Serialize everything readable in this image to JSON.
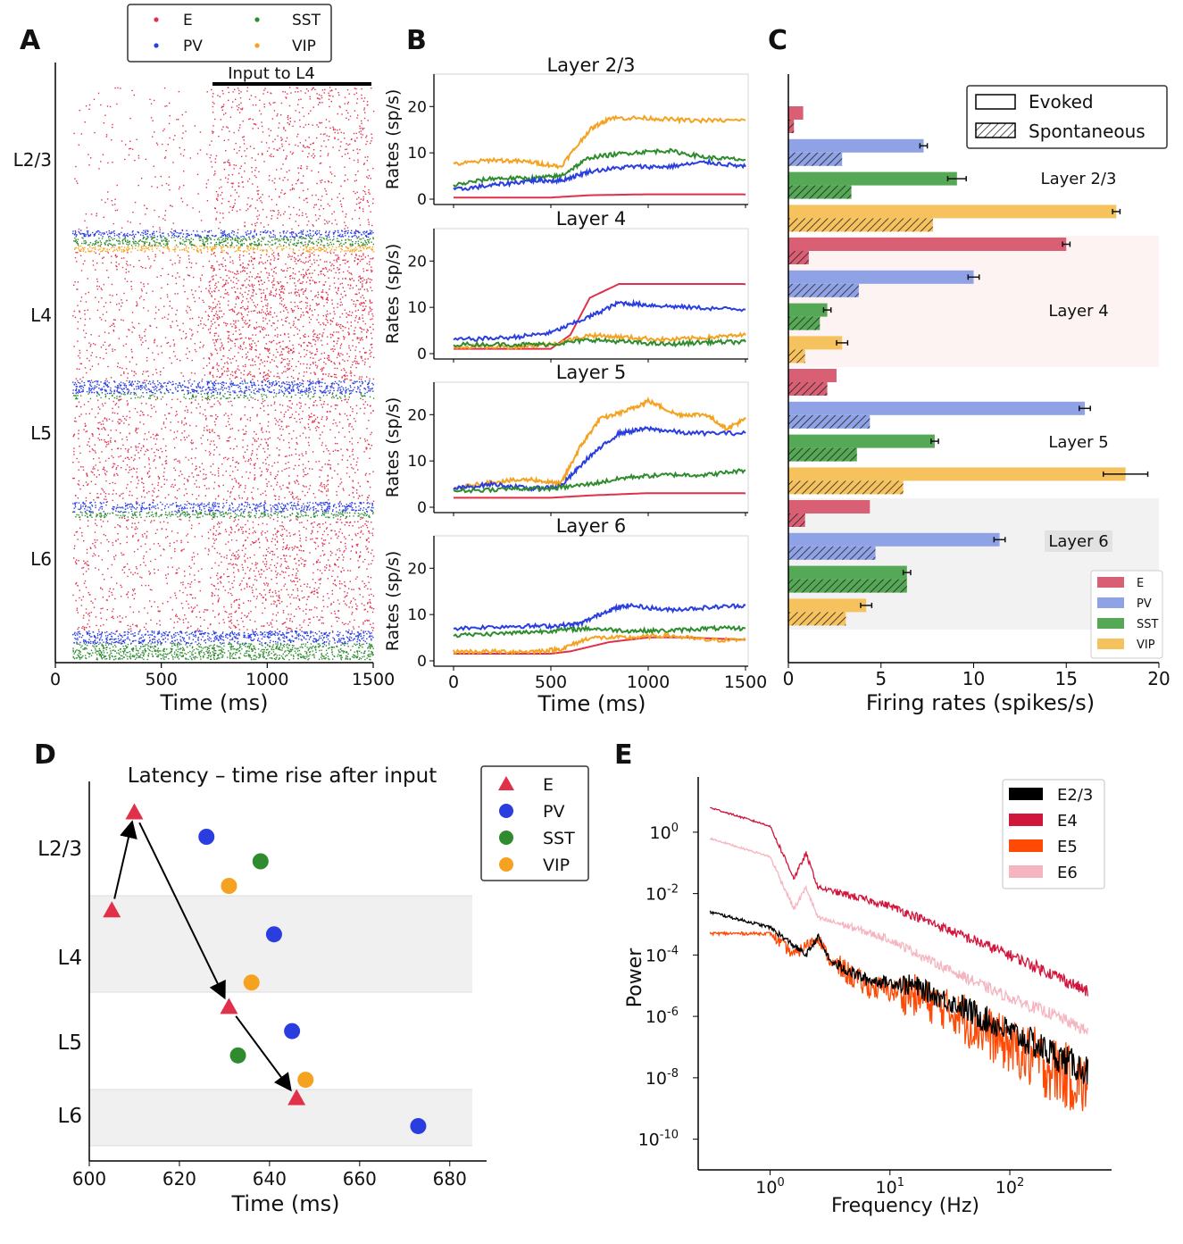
{
  "colors": {
    "E": "#e0304a",
    "PV": "#2a3ee0",
    "SST": "#2e8b2e",
    "VIP": "#f4a21f",
    "E_bar": "#d95f74",
    "PV_bar": "#8fa2e6",
    "SST_bar": "#55a855",
    "VIP_bar": "#f6c25e",
    "E4": "#d0163c",
    "E5": "#ff4a06",
    "E6": "#f5b5c0",
    "E23": "#000000"
  },
  "chart_data": [
    {
      "id": "A",
      "panel_letter": "A",
      "type": "scatter",
      "xlabel": "Time (ms)",
      "xlim": [
        0,
        1500
      ],
      "xticks": [
        0,
        500,
        1000,
        1500
      ],
      "input_label": "Input to L4",
      "input_range": [
        750,
        1500
      ],
      "layer_labels": [
        "L2/3",
        "L4",
        "L5",
        "L6"
      ],
      "legend": [
        {
          "name": "E",
          "key": "E"
        },
        {
          "name": "PV",
          "key": "PV"
        },
        {
          "name": "SST",
          "key": "SST"
        },
        {
          "name": "VIP",
          "key": "VIP"
        }
      ],
      "bands": [
        {
          "layer": "L2/3",
          "y": [
            0,
            0.25
          ],
          "rate_before": 0.13,
          "rate_after": 0.45,
          "type": "E"
        },
        {
          "layer": "L2/3",
          "y": [
            0.25,
            0.262
          ],
          "rate_before": 1,
          "rate_after": 1,
          "type": "PV"
        },
        {
          "layer": "L2/3",
          "y": [
            0.262,
            0.277
          ],
          "rate_before": 1,
          "rate_after": 1,
          "type": "SST"
        },
        {
          "layer": "L2/3",
          "y": [
            0.277,
            0.288
          ],
          "rate_before": 1,
          "rate_after": 1,
          "type": "VIP"
        },
        {
          "layer": "L4",
          "y": [
            0.288,
            0.513
          ],
          "rate_before": 0.35,
          "rate_after": 1,
          "type": "E",
          "onset": 720
        },
        {
          "layer": "L4",
          "y": [
            0.513,
            0.535
          ],
          "rate_before": 1,
          "rate_after": 1,
          "type": "PV"
        },
        {
          "layer": "L4",
          "y": [
            0.535,
            0.545
          ],
          "rate_before": 0.5,
          "rate_after": 0.5,
          "type": "SST"
        },
        {
          "layer": "L5",
          "y": [
            0.545,
            0.725
          ],
          "rate_before": 0.55,
          "rate_after": 0.55,
          "type": "E"
        },
        {
          "layer": "L5",
          "y": [
            0.725,
            0.742
          ],
          "rate_before": 0.8,
          "rate_after": 1,
          "type": "PV"
        },
        {
          "layer": "L5",
          "y": [
            0.742,
            0.752
          ],
          "rate_before": 1,
          "rate_after": 1,
          "type": "SST"
        },
        {
          "layer": "L6",
          "y": [
            0.752,
            0.95
          ],
          "rate_before": 0.4,
          "rate_after": 0.7,
          "type": "E"
        },
        {
          "layer": "L6",
          "y": [
            0.95,
            0.972
          ],
          "rate_before": 1,
          "rate_after": 1,
          "type": "PV"
        },
        {
          "layer": "L6",
          "y": [
            0.972,
            1.0
          ],
          "rate_before": 1,
          "rate_after": 1,
          "type": "SST"
        }
      ]
    },
    {
      "id": "B",
      "panel_letter": "B",
      "type": "line",
      "xlabel": "Time (ms)",
      "ylabel": "Rates (sp/s)",
      "xticks": [
        0,
        500,
        1000,
        1500
      ],
      "xlim": [
        0,
        1500
      ],
      "subplots": [
        {
          "title": "Layer 2/3",
          "ylim": [
            0,
            27
          ],
          "yticks": [
            0,
            10,
            20
          ],
          "series": [
            {
              "name": "VIP",
              "x": [
                0,
                200,
                400,
                550,
                700,
                800,
                1000,
                1200,
                1500
              ],
              "y": [
                7.5,
                8.5,
                8,
                7,
                15,
                17.5,
                17.5,
                17,
                17
              ]
            },
            {
              "name": "SST",
              "x": [
                0,
                200,
                400,
                550,
                700,
                900,
                1100,
                1300,
                1500
              ],
              "y": [
                3,
                4.5,
                4.5,
                5,
                9,
                10,
                10.5,
                9,
                8.5
              ]
            },
            {
              "name": "PV",
              "x": [
                0,
                200,
                400,
                550,
                700,
                900,
                1100,
                1300,
                1500
              ],
              "y": [
                2,
                3,
                4,
                4,
                6,
                7,
                7,
                8,
                7
              ]
            },
            {
              "name": "E",
              "x": [
                0,
                500,
                700,
                1000,
                1500
              ],
              "y": [
                0.3,
                0.3,
                0.8,
                1,
                1
              ]
            }
          ]
        },
        {
          "title": "Layer 4",
          "ylim": [
            0,
            27
          ],
          "yticks": [
            0,
            10,
            20
          ],
          "series": [
            {
              "name": "E",
              "x": [
                0,
                500,
                600,
                700,
                850,
                1000,
                1500
              ],
              "y": [
                1,
                1,
                4,
                12,
                15,
                15,
                15
              ]
            },
            {
              "name": "PV",
              "x": [
                0,
                300,
                500,
                700,
                850,
                1000,
                1200,
                1500
              ],
              "y": [
                3,
                3.5,
                4.5,
                8,
                11,
                10.5,
                10,
                9.5
              ]
            },
            {
              "name": "VIP",
              "x": [
                0,
                300,
                500,
                700,
                900,
                1100,
                1300,
                1500
              ],
              "y": [
                1.5,
                1.5,
                2,
                4,
                3.5,
                3,
                3.5,
                4
              ]
            },
            {
              "name": "SST",
              "x": [
                0,
                300,
                500,
                700,
                900,
                1100,
                1300,
                1500
              ],
              "y": [
                2,
                2,
                2,
                3,
                2.5,
                2,
                2.5,
                2.5
              ]
            }
          ]
        },
        {
          "title": "Layer 5",
          "ylim": [
            0,
            27
          ],
          "yticks": [
            0,
            10,
            20
          ],
          "series": [
            {
              "name": "VIP",
              "x": [
                0,
                200,
                400,
                550,
                650,
                750,
                900,
                1000,
                1150,
                1300,
                1400,
                1500
              ],
              "y": [
                4,
                5.5,
                6,
                5,
                13,
                19,
                21,
                23,
                20,
                20,
                17,
                19
              ]
            },
            {
              "name": "PV",
              "x": [
                0,
                200,
                400,
                550,
                700,
                850,
                1000,
                1200,
                1500
              ],
              "y": [
                4,
                5,
                4,
                4.5,
                11,
                16,
                17,
                16,
                16
              ]
            },
            {
              "name": "SST",
              "x": [
                0,
                300,
                500,
                700,
                900,
                1100,
                1300,
                1500
              ],
              "y": [
                3.5,
                4,
                4,
                5,
                6.5,
                7,
                7,
                8
              ]
            },
            {
              "name": "E",
              "x": [
                0,
                500,
                700,
                1000,
                1500
              ],
              "y": [
                2,
                2,
                2.5,
                3,
                3
              ]
            }
          ]
        },
        {
          "title": "Layer 6",
          "ylim": [
            0,
            27
          ],
          "yticks": [
            0,
            10,
            20
          ],
          "series": [
            {
              "name": "PV",
              "x": [
                0,
                300,
                500,
                650,
                800,
                900,
                1100,
                1300,
                1500
              ],
              "y": [
                7,
                7.5,
                7.5,
                8,
                11,
                12,
                11,
                11.5,
                12
              ]
            },
            {
              "name": "SST",
              "x": [
                0,
                300,
                500,
                700,
                900,
                1100,
                1300,
                1500
              ],
              "y": [
                5.5,
                6,
                6.5,
                7,
                6.5,
                6.5,
                7,
                7
              ]
            },
            {
              "name": "E",
              "x": [
                0,
                500,
                600,
                800,
                1000,
                1200,
                1500
              ],
              "y": [
                1.5,
                1.5,
                2,
                4,
                5,
                5,
                4.5
              ]
            },
            {
              "name": "VIP",
              "x": [
                0,
                200,
                400,
                550,
                700,
                900,
                1100,
                1300,
                1500
              ],
              "y": [
                2,
                2,
                2,
                2.5,
                5,
                5,
                5.5,
                4.5,
                4.5
              ]
            }
          ]
        }
      ]
    },
    {
      "id": "C",
      "panel_letter": "C",
      "type": "bar",
      "xlabel": "Firing rates (spikes/s)",
      "xlim": [
        0,
        20
      ],
      "xticks": [
        0,
        5,
        10,
        15,
        20
      ],
      "legend_style": [
        "Evoked",
        "Spontaneous"
      ],
      "legend_types": [
        "E",
        "PV",
        "SST",
        "VIP"
      ],
      "layers": [
        {
          "name": "Layer 2/3",
          "evoked": [
            0.8,
            7.3,
            9.1,
            17.7
          ],
          "spont": [
            0.3,
            2.9,
            3.4,
            7.8
          ],
          "err": [
            0,
            0.2,
            0.5,
            0.2
          ]
        },
        {
          "name": "Layer 4",
          "evoked": [
            15,
            10,
            2.1,
            2.9
          ],
          "spont": [
            1.1,
            3.8,
            1.7,
            0.9
          ],
          "err": [
            0.2,
            0.3,
            0.2,
            0.3
          ]
        },
        {
          "name": "Layer 5",
          "evoked": [
            2.6,
            16,
            7.9,
            18.2
          ],
          "spont": [
            2.1,
            4.4,
            3.7,
            6.2
          ],
          "err": [
            0,
            0.3,
            0.2,
            1.2
          ]
        },
        {
          "name": "Layer 6",
          "evoked": [
            4.4,
            11.4,
            6.4,
            4.2
          ],
          "spont": [
            0.9,
            4.7,
            6.4,
            3.1
          ],
          "err": [
            0,
            0.3,
            0.2,
            0.3
          ]
        }
      ]
    },
    {
      "id": "D",
      "panel_letter": "D",
      "type": "scatter",
      "title": "Latency – time rise after input",
      "xlabel": "Time (ms)",
      "xlim": [
        600,
        690
      ],
      "xticks": [
        600,
        620,
        640,
        660,
        680
      ],
      "layer_labels": [
        "L2/3",
        "L4",
        "L5",
        "L6"
      ],
      "legend": [
        "E",
        "PV",
        "SST",
        "VIP"
      ],
      "points": [
        {
          "type": "E",
          "x": 610,
          "layer": "L2/3",
          "offset": 0.15
        },
        {
          "type": "PV",
          "x": 626,
          "layer": "L2/3",
          "offset": 0.4
        },
        {
          "type": "SST",
          "x": 638,
          "layer": "L2/3",
          "offset": 0.65
        },
        {
          "type": "VIP",
          "x": 631,
          "layer": "L2/3",
          "offset": 0.9
        },
        {
          "type": "E",
          "x": 605,
          "layer": "L4",
          "offset": 0.15
        },
        {
          "type": "PV",
          "x": 641,
          "layer": "L4",
          "offset": 0.4
        },
        {
          "type": "VIP",
          "x": 636,
          "layer": "L4",
          "offset": 0.9
        },
        {
          "type": "E",
          "x": 631,
          "layer": "L5",
          "offset": 0.15
        },
        {
          "type": "PV",
          "x": 645,
          "layer": "L5",
          "offset": 0.4
        },
        {
          "type": "SST",
          "x": 633,
          "layer": "L5",
          "offset": 0.65
        },
        {
          "type": "VIP",
          "x": 648,
          "layer": "L5",
          "offset": 0.9
        },
        {
          "type": "E",
          "x": 646,
          "layer": "L6",
          "offset": 0.15
        },
        {
          "type": "PV",
          "x": 673,
          "layer": "L6",
          "offset": 0.65
        }
      ]
    },
    {
      "id": "E",
      "panel_letter": "E",
      "type": "line",
      "xlabel": "Frequency (Hz)",
      "ylabel": "Power",
      "xscale": "log",
      "yscale": "log",
      "xlim_log10": [
        -0.6,
        2.7
      ],
      "ylim_log10": [
        -11,
        1.8
      ],
      "xtick_exps": [
        0,
        1,
        2
      ],
      "ytick_exps": [
        0,
        -2,
        -4,
        -6,
        -8,
        -10
      ],
      "series": [
        {
          "name": "E2/3",
          "key": "E23",
          "x": [
            -0.5,
            0,
            0.3,
            0.4,
            0.5,
            0.8,
            1.2,
            1.6,
            2,
            2.4,
            2.65
          ],
          "y": [
            -2.6,
            -3.1,
            -4,
            -3.4,
            -4.2,
            -4.8,
            -5,
            -5.7,
            -6.5,
            -7.3,
            -7.8
          ],
          "noise": [
            0.05,
            0.1,
            0.2,
            0.35,
            0.45,
            0.5
          ]
        },
        {
          "name": "E4",
          "key": "E4",
          "x": [
            -0.5,
            0,
            0.2,
            0.3,
            0.4,
            0.6,
            1,
            1.5,
            2,
            2.4,
            2.65
          ],
          "y": [
            0.8,
            0.2,
            -1.5,
            -0.7,
            -1.8,
            -2,
            -2.4,
            -3.2,
            -4,
            -4.7,
            -5.2
          ],
          "noise": [
            0.03,
            0.08,
            0.12,
            0.15,
            0.18,
            0.2
          ]
        },
        {
          "name": "E5",
          "key": "E5",
          "x": [
            -0.5,
            0,
            0.2,
            0.4,
            0.5,
            0.8,
            1.2,
            1.6,
            2,
            2.4,
            2.65
          ],
          "y": [
            -3.3,
            -3.3,
            -4,
            -3.4,
            -4.2,
            -5,
            -5.3,
            -6,
            -7,
            -7.8,
            -8.3
          ],
          "noise": [
            0.05,
            0.2,
            0.4,
            0.7,
            0.9,
            1.1
          ]
        },
        {
          "name": "E6",
          "key": "E6",
          "x": [
            -0.5,
            0,
            0.2,
            0.3,
            0.4,
            0.6,
            1,
            1.5,
            2,
            2.4,
            2.65
          ],
          "y": [
            -0.2,
            -0.8,
            -2.5,
            -1.8,
            -2.8,
            -3,
            -3.5,
            -4.5,
            -5.4,
            -6,
            -6.5
          ],
          "noise": [
            0.03,
            0.08,
            0.12,
            0.15,
            0.18,
            0.2
          ]
        }
      ]
    }
  ]
}
